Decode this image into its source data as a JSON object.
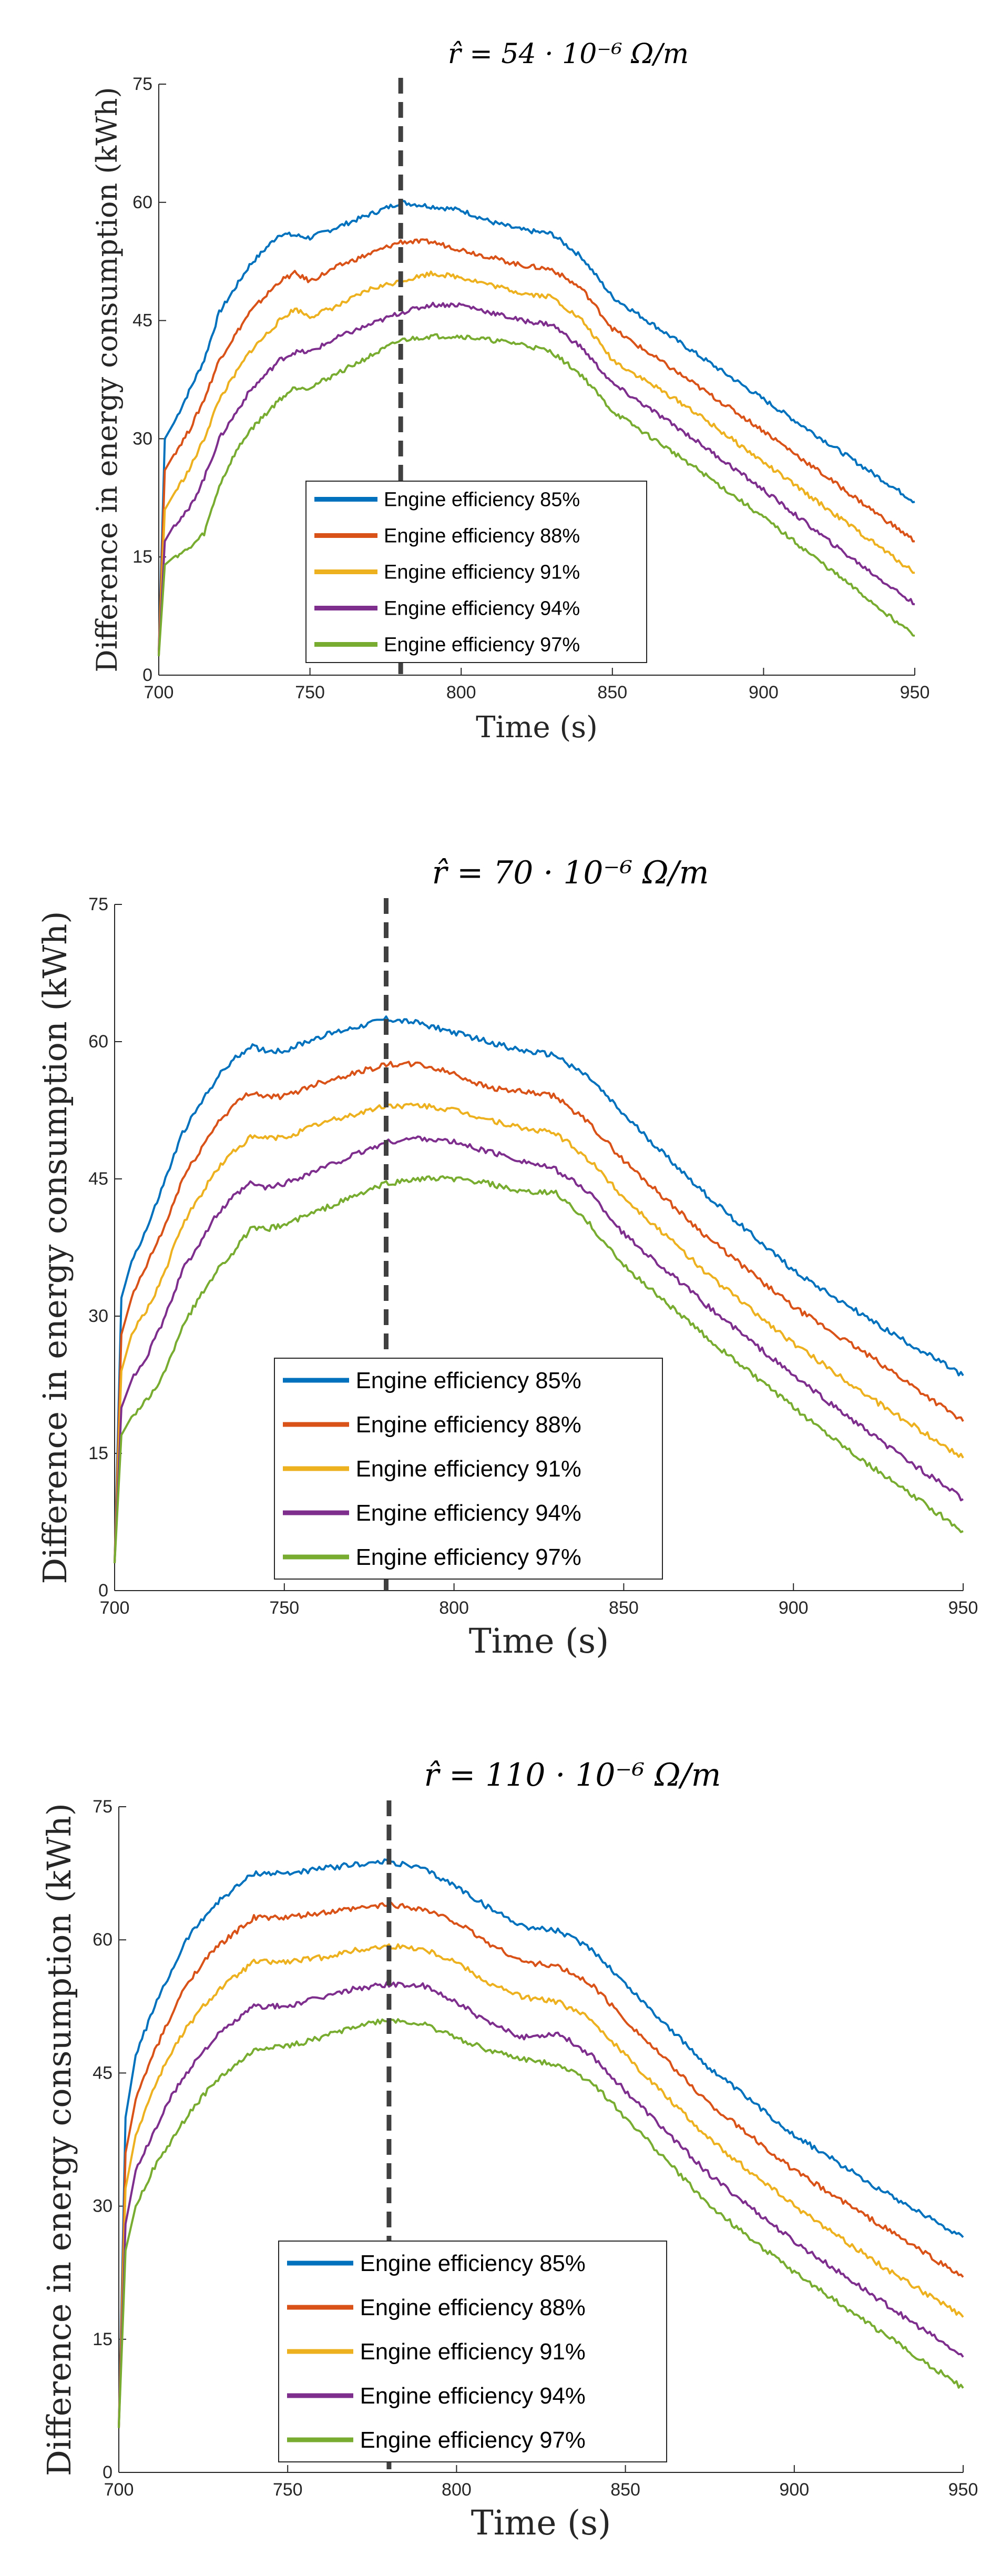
{
  "figure": {
    "ylabel": "Difference in energy consumption (kWh)",
    "xlabel": "Time (s)"
  },
  "chart_data": [
    {
      "type": "line",
      "title": "r̂ = 54 · 10⁻⁶ Ω/m",
      "xlabel": "Time (s)",
      "ylabel": "Difference in energy consumption (kWh)",
      "xlim": [
        700,
        950
      ],
      "ylim": [
        0,
        75
      ],
      "xticks": [
        700,
        750,
        800,
        850,
        900,
        950
      ],
      "yticks": [
        0,
        15,
        30,
        45,
        60,
        75
      ],
      "vline_x": 780,
      "legend_position": "lower-center",
      "x": [
        700,
        702,
        705,
        710,
        715,
        720,
        725,
        730,
        735,
        740,
        745,
        750,
        760,
        770,
        780,
        790,
        800,
        810,
        820,
        830,
        840,
        850,
        875,
        900,
        925,
        950
      ],
      "series": [
        {
          "name": "Engine efficiency 85%",
          "color": "#0072BD",
          "values": [
            3,
            30,
            32,
            36,
            40,
            46,
            49,
            52,
            54,
            56,
            55.8,
            55.5,
            57,
            58.5,
            60,
            59.5,
            59,
            57.5,
            56.5,
            56,
            53,
            48,
            41.5,
            35,
            28.5,
            22
          ]
        },
        {
          "name": "Engine efficiency 88%",
          "color": "#D95319",
          "values": [
            2.8,
            26,
            28,
            31,
            35,
            40,
            43,
            46,
            48,
            50,
            51,
            50,
            52,
            53.5,
            55,
            55,
            54,
            53,
            52,
            51.5,
            49,
            44,
            37.5,
            31,
            24,
            17
          ]
        },
        {
          "name": "Engine efficiency 91%",
          "color": "#EDB120",
          "values": [
            2.6,
            21,
            23,
            26,
            30,
            35,
            38,
            41,
            43,
            45,
            46.5,
            45.5,
            47,
            49,
            50,
            51,
            50.5,
            49.5,
            48.5,
            48,
            45,
            40,
            34,
            27,
            20,
            13
          ]
        },
        {
          "name": "Engine efficiency 94%",
          "color": "#7E2F8E",
          "values": [
            2.5,
            17,
            19,
            21,
            25,
            30,
            33,
            36,
            38,
            40,
            41,
            41,
            43,
            44.5,
            46,
            47,
            47,
            46,
            45,
            44.5,
            41.5,
            37,
            30.5,
            23.5,
            16,
            9
          ]
        },
        {
          "name": "Engine efficiency 97%",
          "color": "#77AC30",
          "values": [
            2.4,
            14,
            15,
            16,
            18,
            24,
            28,
            31,
            33,
            35,
            36.5,
            36.5,
            38.5,
            40.5,
            42.5,
            43,
            43,
            42.5,
            42,
            41,
            38,
            33.5,
            27,
            20,
            12.5,
            5
          ]
        }
      ]
    },
    {
      "type": "line",
      "title": "r̂ = 70 · 10⁻⁶ Ω/m",
      "xlabel": "Time (s)",
      "ylabel": "Difference in energy consumption (kWh)",
      "xlim": [
        700,
        950
      ],
      "ylim": [
        0,
        75
      ],
      "xticks": [
        700,
        750,
        800,
        850,
        900,
        950
      ],
      "yticks": [
        0,
        15,
        30,
        45,
        60,
        75
      ],
      "vline_x": 780,
      "legend_position": "lower-center",
      "x": [
        700,
        702,
        705,
        710,
        715,
        720,
        725,
        730,
        735,
        740,
        745,
        750,
        760,
        770,
        780,
        790,
        800,
        810,
        820,
        830,
        840,
        850,
        875,
        900,
        925,
        950
      ],
      "series": [
        {
          "name": "Engine efficiency 85%",
          "color": "#0072BD",
          "values": [
            3,
            32,
            36,
            40,
            45,
            50,
            53,
            56,
            58,
            59.5,
            59,
            59,
            60.5,
            61.5,
            62.5,
            62,
            61,
            60,
            59,
            58.5,
            56,
            52,
            43,
            35,
            29,
            23.5
          ]
        },
        {
          "name": "Engine efficiency 88%",
          "color": "#D95319",
          "values": [
            3,
            28,
            32,
            36,
            40,
            45,
            48,
            51,
            53,
            54.5,
            54,
            54,
            55.5,
            56.5,
            57.5,
            57.5,
            56.5,
            55,
            54.5,
            54,
            51,
            47,
            38.5,
            31,
            25,
            18.5
          ]
        },
        {
          "name": "Engine efficiency 91%",
          "color": "#EDB120",
          "values": [
            3,
            24,
            28,
            31,
            35,
            40,
            43,
            46,
            48,
            49.5,
            49.5,
            49.5,
            51,
            52,
            53,
            53,
            52.5,
            51.5,
            50.5,
            50,
            47,
            43,
            34.5,
            27,
            20.5,
            14.5
          ]
        },
        {
          "name": "Engine efficiency 94%",
          "color": "#7E2F8E",
          "values": [
            3,
            20,
            23,
            26,
            30,
            35,
            38,
            41,
            43,
            44.5,
            44,
            44.5,
            46,
            47.5,
            49,
            49.5,
            49,
            48,
            47,
            46,
            43.5,
            39,
            31,
            23.5,
            16.5,
            10
          ]
        },
        {
          "name": "Engine efficiency 97%",
          "color": "#77AC30",
          "values": [
            3,
            17,
            19,
            21,
            24,
            29,
            32,
            35,
            37,
            39.5,
            39.5,
            40,
            41.5,
            43,
            44.5,
            45,
            45,
            44.5,
            43.5,
            43.5,
            40,
            35.5,
            27.5,
            20,
            13,
            6.5
          ]
        }
      ]
    },
    {
      "type": "line",
      "title": "r̂ = 110 · 10⁻⁶ Ω/m",
      "xlabel": "Time (s)",
      "ylabel": "Difference in energy consumption (kWh)",
      "xlim": [
        700,
        950
      ],
      "ylim": [
        0,
        75
      ],
      "xticks": [
        700,
        750,
        800,
        850,
        900,
        950
      ],
      "yticks": [
        0,
        15,
        30,
        45,
        60,
        75
      ],
      "vline_x": 780,
      "legend_position": "lower-center",
      "x": [
        700,
        702,
        705,
        710,
        715,
        720,
        725,
        730,
        735,
        740,
        745,
        750,
        760,
        770,
        780,
        790,
        800,
        810,
        820,
        830,
        840,
        850,
        875,
        900,
        925,
        950
      ],
      "series": [
        {
          "name": "Engine efficiency 85%",
          "color": "#0072BD",
          "values": [
            5,
            40,
            47,
            52,
            56,
            60,
            62.5,
            64.5,
            66,
            67.5,
            67.5,
            67.5,
            68,
            68.5,
            68.8,
            68,
            66,
            63.5,
            61.5,
            61,
            59,
            55,
            45.5,
            38,
            32,
            26.5
          ]
        },
        {
          "name": "Engine efficiency 88%",
          "color": "#D95319",
          "values": [
            5,
            36,
            42,
            47,
            51,
            55,
            57.5,
            59.5,
            61,
            62.5,
            62.5,
            62.5,
            63,
            63.5,
            64,
            63.5,
            62,
            59.5,
            57.5,
            57,
            55,
            51,
            41.5,
            34,
            28,
            22
          ]
        },
        {
          "name": "Engine efficiency 91%",
          "color": "#EDB120",
          "values": [
            5,
            32,
            38,
            43,
            47,
            50,
            52.5,
            54.5,
            56,
            57.5,
            57.5,
            57.5,
            58,
            58.8,
            59.3,
            59,
            57.5,
            55,
            53.5,
            53,
            51,
            47,
            37.5,
            30,
            23.5,
            17.5
          ]
        },
        {
          "name": "Engine efficiency 94%",
          "color": "#7E2F8E",
          "values": [
            5,
            28,
            34,
            38,
            42,
            45,
            47.5,
            49.5,
            51,
            52.5,
            52.5,
            52.5,
            53.5,
            54.5,
            55,
            54.8,
            53,
            50.5,
            49,
            49.5,
            47,
            43,
            33.5,
            26,
            19.5,
            13
          ]
        },
        {
          "name": "Engine efficiency 97%",
          "color": "#77AC30",
          "values": [
            5,
            25,
            30,
            34,
            37,
            40,
            42.5,
            44.5,
            46,
            47.5,
            48,
            48,
            49,
            50.3,
            51,
            50.5,
            49,
            47.5,
            46.5,
            46,
            44,
            40,
            30,
            22.5,
            16,
            9.5
          ]
        }
      ]
    }
  ]
}
